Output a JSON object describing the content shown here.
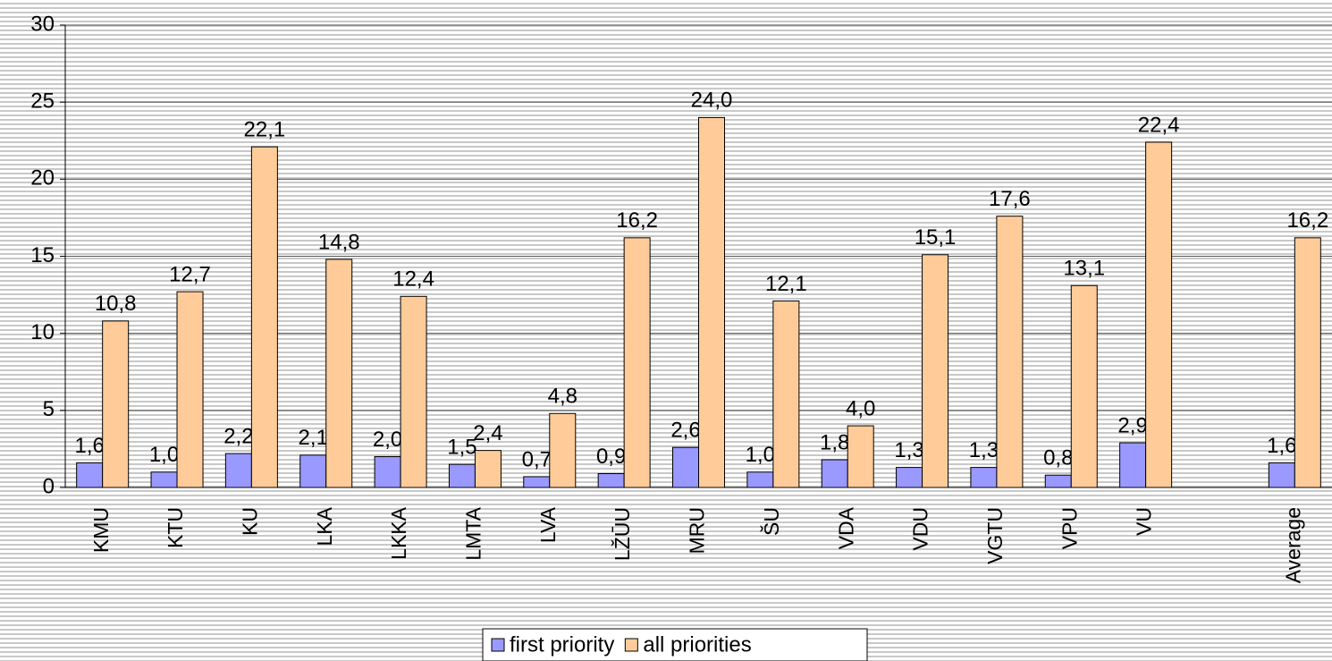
{
  "chart_data": {
    "type": "bar",
    "categories": [
      "KMU",
      "KTU",
      "KU",
      "LKA",
      "LKKA",
      "LMTA",
      "LVA",
      "LŽŪU",
      "MRU",
      "ŠU",
      "VDA",
      "VDU",
      "VGTU",
      "VPU",
      "VU",
      null,
      "Average"
    ],
    "series": [
      {
        "name": "first priority",
        "color": "#9999ff",
        "values": [
          1.6,
          1.0,
          2.2,
          2.1,
          2.0,
          1.5,
          0.7,
          0.9,
          2.6,
          1.0,
          1.8,
          1.3,
          1.3,
          0.8,
          2.9,
          null,
          1.6
        ],
        "value_labels": [
          "1,6",
          "1,0",
          "2,2",
          "2,1",
          "2,0",
          "1,5",
          "0,7",
          "0,9",
          "2,6",
          "1,0",
          "1,8",
          "1,3",
          "1,3",
          "0,8",
          "2,9",
          null,
          "1,6"
        ]
      },
      {
        "name": "all priorities",
        "color": "#ffcc99",
        "values": [
          10.8,
          12.7,
          22.1,
          14.8,
          12.4,
          2.4,
          4.8,
          16.2,
          24.0,
          12.1,
          4.0,
          15.1,
          17.6,
          13.1,
          22.4,
          null,
          16.2
        ],
        "value_labels": [
          "10,8",
          "12,7",
          "22,1",
          "14,8",
          "12,4",
          "2,4",
          "4,8",
          "16,2",
          "24,0",
          "12,1",
          "4,0",
          "15,1",
          "17,6",
          "13,1",
          "22,4",
          null,
          "16,2"
        ]
      }
    ],
    "ylim": [
      0,
      30
    ],
    "yticks": [
      0,
      5,
      10,
      15,
      20,
      25,
      30
    ],
    "grid": true,
    "legend": "bottom"
  }
}
